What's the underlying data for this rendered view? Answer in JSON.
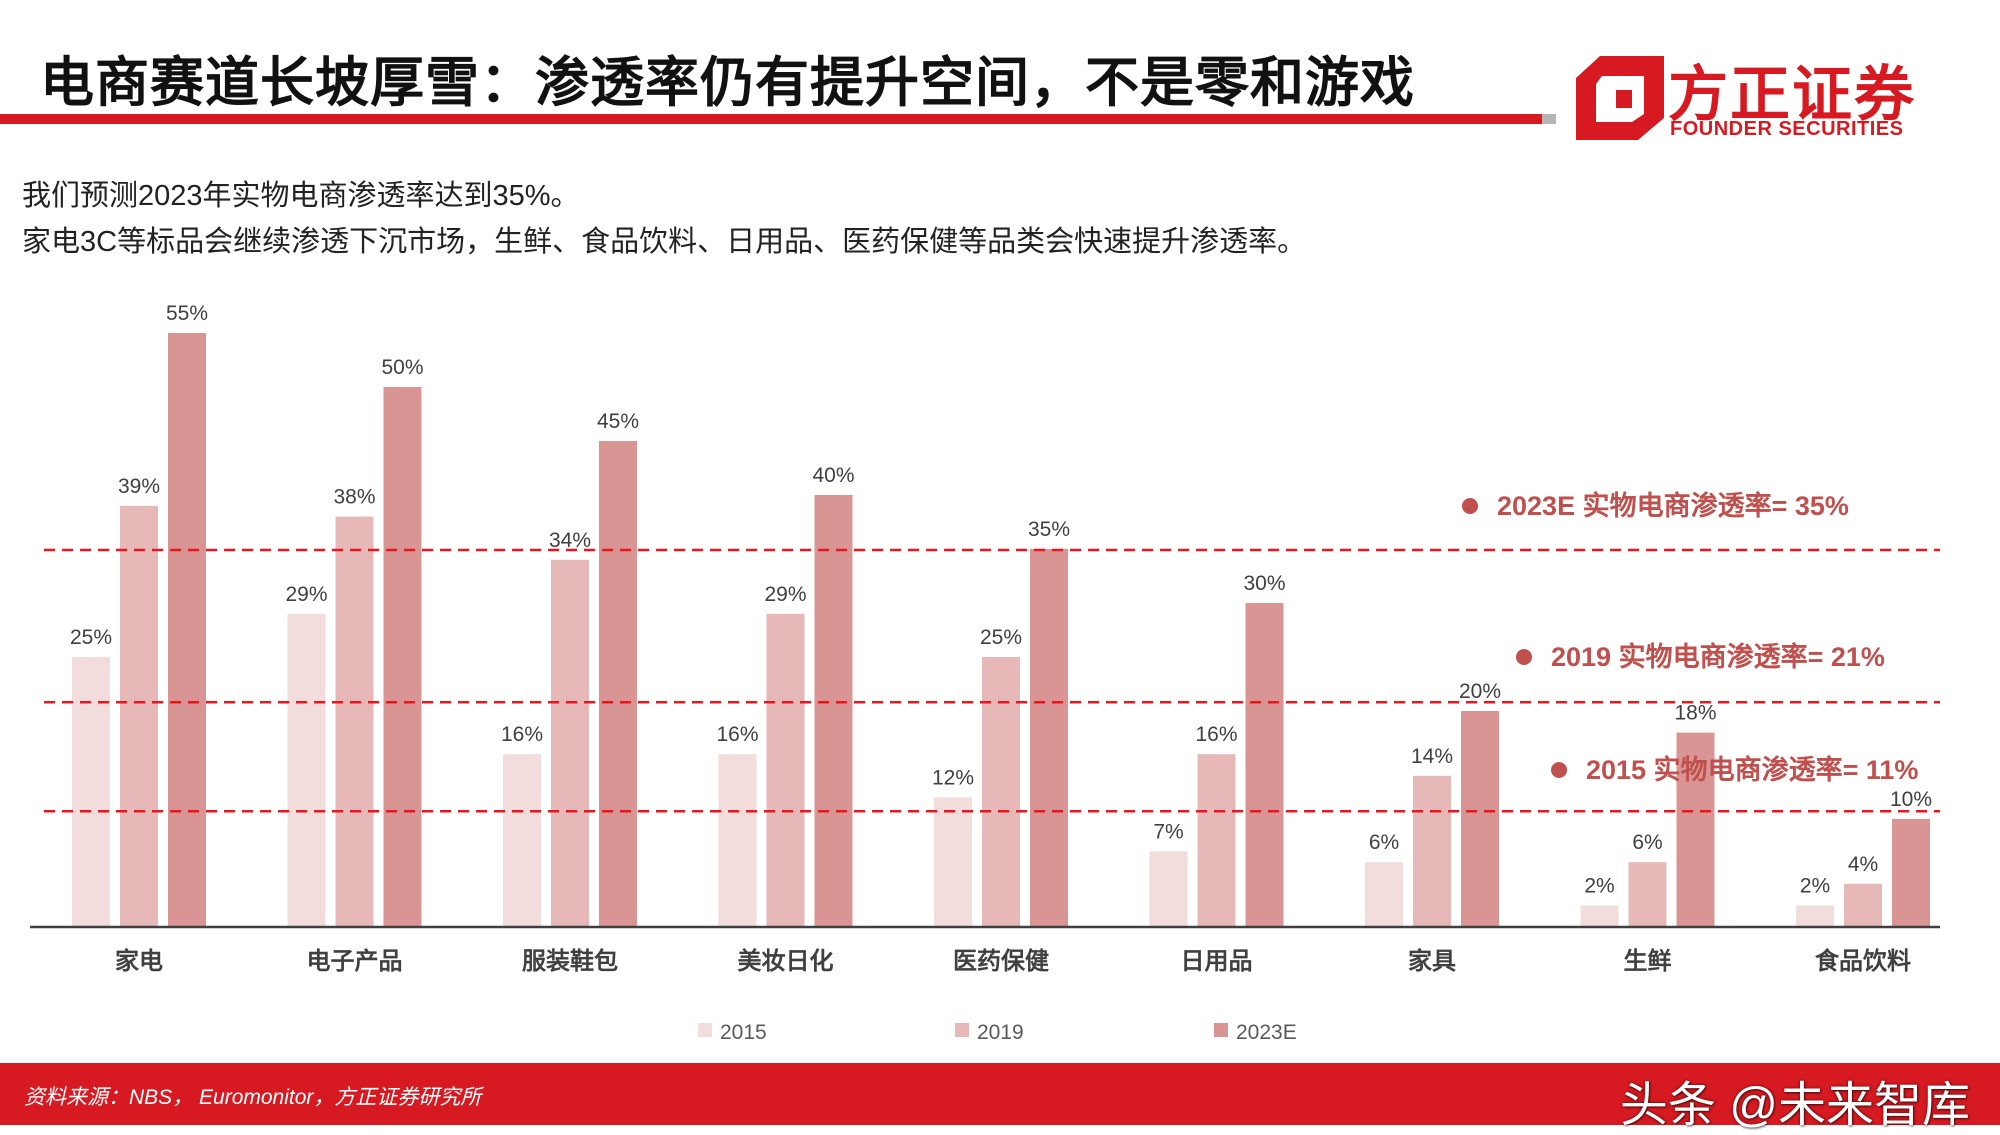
{
  "header": {
    "title": "电商赛道长坡厚雪：渗透率仍有提升空间，不是零和游戏"
  },
  "logo": {
    "name_cn": "方正证券",
    "name_en": "FOUNDER SECURITIES"
  },
  "description": {
    "line1": "我们预测2023年实物电商渗透率达到35%。",
    "line2": "家电3C等标品会继续渗透下沉市场，生鲜、食品饮料、日用品、医药保健等品类会快速提升渗透率。"
  },
  "chart_data": {
    "type": "bar",
    "categories": [
      "家电",
      "电子产品",
      "服装鞋包",
      "美妆日化",
      "医药保健",
      "日用品",
      "家具",
      "生鲜",
      "食品饮料"
    ],
    "series": [
      {
        "name": "2015",
        "values": [
          25,
          29,
          16,
          16,
          12,
          7,
          6,
          2,
          2
        ],
        "color": "#f2dcdc"
      },
      {
        "name": "2019",
        "values": [
          39,
          38,
          34,
          29,
          25,
          16,
          14,
          6,
          4
        ],
        "color": "#e6b8b8"
      },
      {
        "name": "2023E",
        "values": [
          55,
          50,
          45,
          40,
          35,
          30,
          20,
          18,
          10
        ],
        "color": "#d99594"
      }
    ],
    "value_suffix": "%",
    "ylim": [
      0,
      60
    ],
    "grid": false,
    "legend_position": "bottom",
    "reference_lines": [
      {
        "value": 35,
        "label": "2023E 实物电商渗透率= 35%"
      },
      {
        "value": 21,
        "label": "2019 实物电商渗透率= 21%"
      },
      {
        "value": 11,
        "label": "2015 实物电商渗透率= 11%"
      }
    ],
    "reference_color": "#c0504d",
    "line_color": "#e8161e"
  },
  "footer": {
    "source": "资料来源：NBS， Euromonitor，方正证券研究所",
    "watermark": "头条 @未来智库"
  },
  "colors": {
    "brand_red": "#d71a21",
    "axis": "#404040"
  }
}
